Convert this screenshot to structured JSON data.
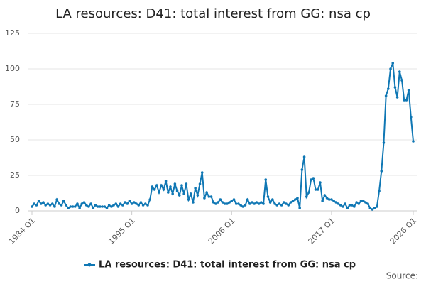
{
  "chart_data": {
    "type": "line",
    "title": "LA resources: D41: total interest from GG: nsa cp",
    "source": "Source:",
    "categories": [
      "1984 Q1",
      null,
      null,
      null,
      null,
      null,
      null,
      null,
      null,
      null,
      null,
      null,
      null,
      null,
      null,
      null,
      null,
      null,
      null,
      null,
      null,
      null,
      null,
      null,
      null,
      null,
      null,
      null,
      null,
      null,
      null,
      null,
      null,
      null,
      null,
      null,
      null,
      null,
      null,
      null,
      null,
      null,
      null,
      null,
      "1995 Q1",
      null,
      null,
      null,
      null,
      null,
      null,
      null,
      null,
      null,
      null,
      null,
      null,
      null,
      null,
      null,
      null,
      null,
      null,
      null,
      null,
      null,
      null,
      null,
      null,
      null,
      null,
      null,
      null,
      null,
      null,
      null,
      null,
      null,
      null,
      null,
      null,
      null,
      null,
      null,
      null,
      null,
      null,
      null,
      "2006 Q1",
      null,
      null,
      null,
      null,
      null,
      null,
      null,
      null,
      null,
      null,
      null,
      null,
      null,
      null,
      null,
      null,
      null,
      null,
      null,
      null,
      null,
      null,
      null,
      null,
      null,
      null,
      null,
      null,
      null,
      null,
      null,
      null,
      null,
      null,
      null,
      null,
      null,
      null,
      null,
      null,
      null,
      null,
      null,
      "2017 Q1",
      null,
      null,
      null,
      null,
      null,
      null,
      null,
      null,
      null,
      null,
      null,
      null,
      null,
      null,
      null,
      null,
      null,
      null,
      null,
      null,
      null,
      null,
      null,
      null,
      null,
      null,
      null,
      null,
      null,
      null,
      null,
      null,
      null,
      null,
      null,
      "2026 Q1"
    ],
    "series": [
      {
        "name": "LA resources: D41: total interest from GG: nsa cp",
        "color": "#0f77b4",
        "values": [
          3,
          5,
          4,
          7,
          5,
          6,
          4,
          5,
          4,
          5,
          3,
          8,
          5,
          4,
          7,
          4,
          2,
          3,
          3,
          3,
          5,
          2,
          5,
          6,
          4,
          3,
          5,
          2,
          4,
          3,
          3,
          3,
          3,
          2,
          4,
          3,
          4,
          5,
          3,
          5,
          4,
          6,
          5,
          7,
          5,
          6,
          5,
          4,
          6,
          4,
          5,
          4,
          8,
          17,
          15,
          18,
          13,
          18,
          15,
          21,
          13,
          17,
          12,
          19,
          14,
          11,
          18,
          12,
          19,
          8,
          12,
          6,
          16,
          11,
          19,
          27,
          9,
          13,
          10,
          10,
          6,
          5,
          6,
          8,
          6,
          5,
          5,
          6,
          7,
          8,
          5,
          5,
          4,
          3,
          4,
          8,
          5,
          6,
          5,
          6,
          5,
          6,
          5,
          22,
          10,
          6,
          8,
          5,
          4,
          5,
          4,
          6,
          5,
          4,
          6,
          7,
          8,
          9,
          2,
          29,
          38,
          10,
          13,
          22,
          23,
          15,
          15,
          20,
          7,
          11,
          9,
          8,
          8,
          7,
          6,
          5,
          4,
          3,
          5,
          2,
          4,
          4,
          3,
          6,
          5,
          7,
          7,
          6,
          5,
          2,
          1,
          2,
          3,
          14,
          28,
          48,
          81,
          86,
          100,
          104,
          87,
          80,
          98,
          92,
          78,
          78,
          85,
          66,
          49
        ]
      }
    ],
    "ylim": [
      0,
      125
    ],
    "yticks": [
      0,
      25,
      50,
      75,
      100,
      125
    ],
    "grid": true,
    "legend": "bottom"
  }
}
